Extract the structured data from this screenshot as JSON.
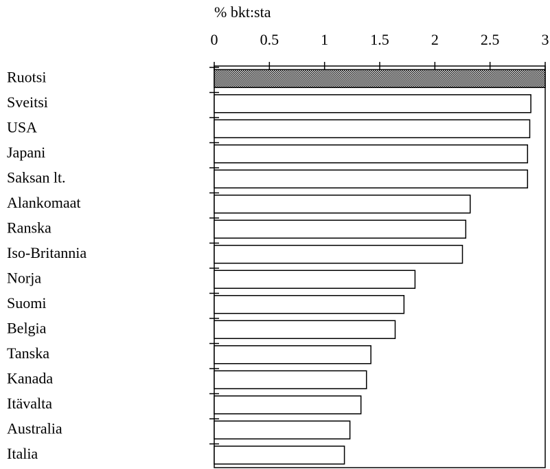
{
  "chart_data": {
    "type": "bar",
    "orientation": "horizontal",
    "x_label": "% bkt:sta",
    "categories": [
      "Ruotsi",
      "Sveitsi",
      "USA",
      "Japani",
      "Saksan lt.",
      "Alankomaat",
      "Ranska",
      "Iso-Britannia",
      "Norja",
      "Suomi",
      "Belgia",
      "Tanska",
      "Kanada",
      "Itävalta",
      "Australia",
      "Italia"
    ],
    "values": [
      3.0,
      2.87,
      2.86,
      2.84,
      2.84,
      2.32,
      2.28,
      2.25,
      1.82,
      1.72,
      1.64,
      1.42,
      1.38,
      1.33,
      1.23,
      1.18
    ],
    "colors": [
      "url(#dots)",
      "#ffffff",
      "#ffffff",
      "#ffffff",
      "#ffffff",
      "#ffffff",
      "#ffffff",
      "#ffffff",
      "#ffffff",
      "#ffffff",
      "#ffffff",
      "#ffffff",
      "#ffffff",
      "#ffffff",
      "#ffffff",
      "#ffffff"
    ],
    "xlim": [
      0,
      3
    ],
    "xticks": [
      0,
      0.5,
      1,
      1.5,
      2,
      2.5,
      3
    ]
  }
}
